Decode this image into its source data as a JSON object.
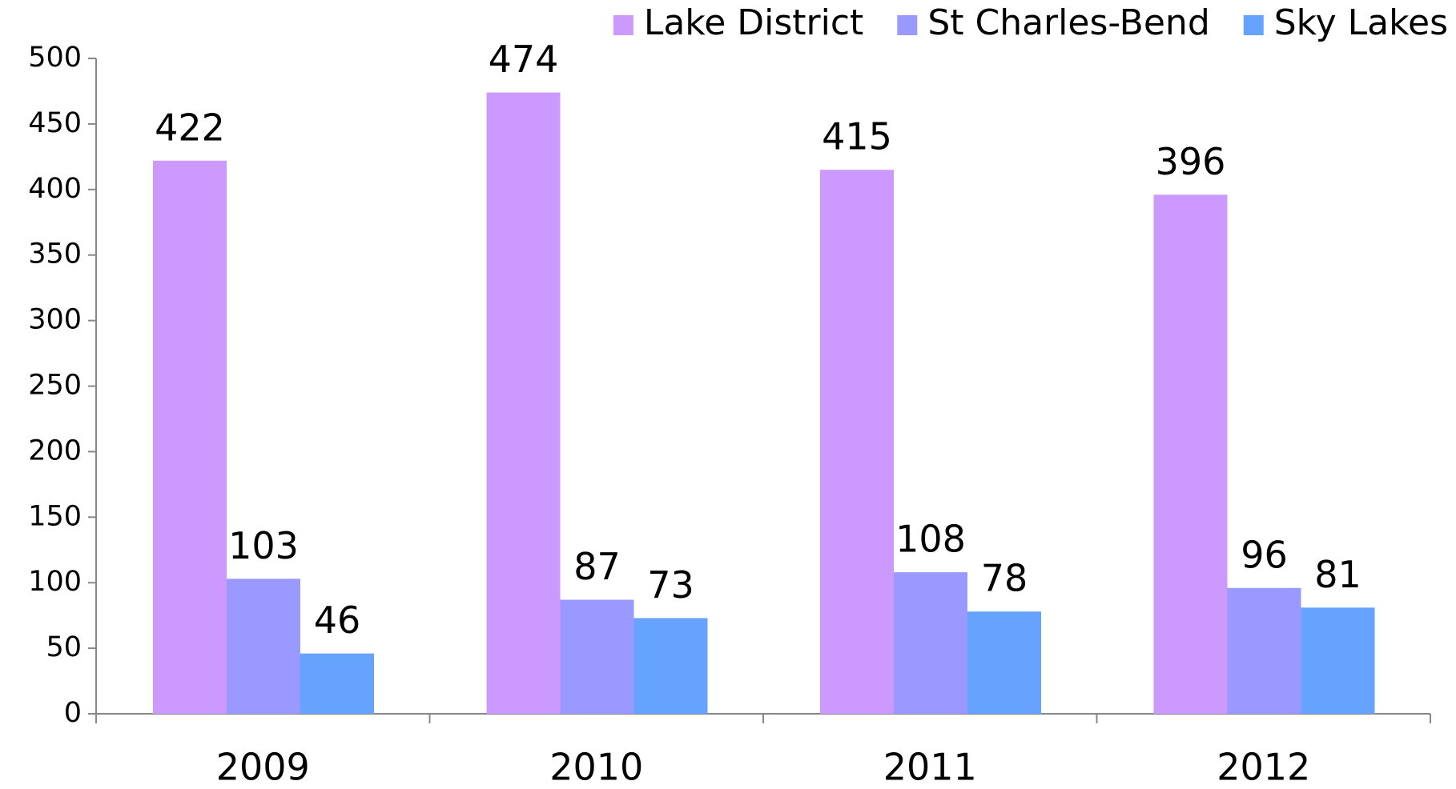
{
  "chart_data": {
    "type": "bar",
    "categories": [
      "2009",
      "2010",
      "2011",
      "2012"
    ],
    "series": [
      {
        "name": "Lake District",
        "color": "#cc99ff",
        "values": [
          422,
          474,
          415,
          396
        ]
      },
      {
        "name": "St Charles-Bend",
        "color": "#9999ff",
        "values": [
          103,
          87,
          108,
          96
        ]
      },
      {
        "name": "Sky Lakes",
        "color": "#66a3ff",
        "values": [
          46,
          73,
          78,
          81
        ]
      }
    ],
    "ylim": [
      0,
      500
    ],
    "yticks": [
      0,
      50,
      100,
      150,
      200,
      250,
      300,
      350,
      400,
      450,
      500
    ],
    "grid": false,
    "legend": "top-right"
  }
}
